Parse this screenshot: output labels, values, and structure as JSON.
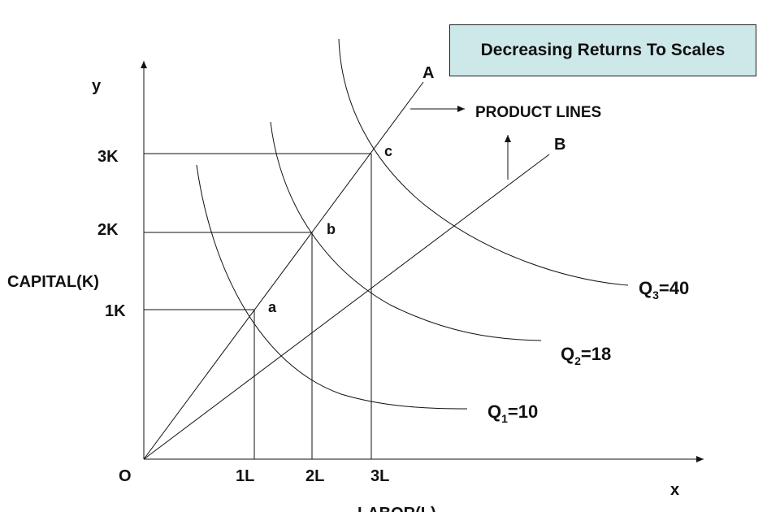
{
  "diagram": {
    "title": "Decreasing Returns To Scales",
    "axis": {
      "y_letter": "y",
      "x_letter": "x",
      "y_label": "CAPITAL(K)",
      "x_label": "LABOR(L)",
      "origin": "O"
    },
    "capital_ticks": [
      "1K",
      "2K",
      "3K"
    ],
    "labor_ticks": [
      "1L",
      "2L",
      "3L"
    ],
    "points": [
      "a",
      "b",
      "c"
    ],
    "rays": [
      "A",
      "B"
    ],
    "product_lines_label": "PRODUCT LINES",
    "isoquants": [
      {
        "prefix": "Q",
        "subscript": "1",
        "suffix": "=10"
      },
      {
        "prefix": "Q",
        "subscript": "2",
        "suffix": "=18"
      },
      {
        "prefix": "Q",
        "subscript": "3",
        "suffix": "=40"
      }
    ]
  }
}
